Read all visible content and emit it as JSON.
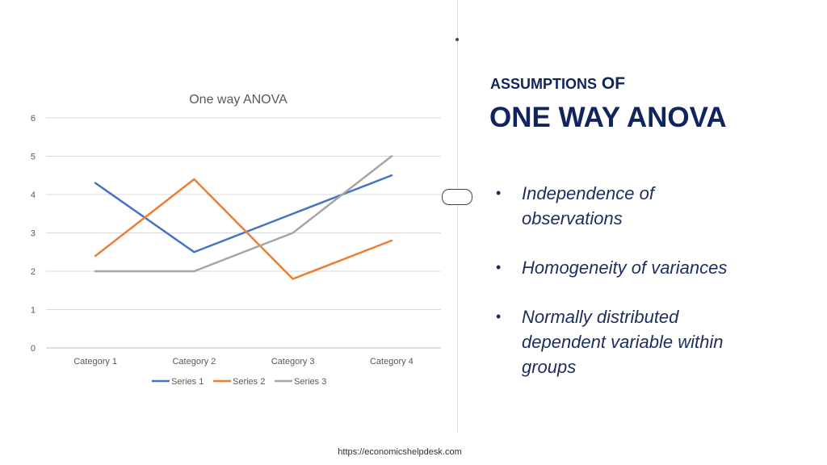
{
  "slide": {
    "title_line1_a": "ASSUMPTIONS",
    "title_line1_b": "OF",
    "title_line2": "ONE WAY ANOVA",
    "bullets": [
      "Independence of observations",
      "Homogeneity of variances",
      "Normally distributed dependent variable within groups"
    ],
    "footer": "https://economicshelpdesk.com"
  },
  "chart_data": {
    "type": "line",
    "title": "One way ANOVA",
    "xlabel": "",
    "ylabel": "",
    "categories": [
      "Category 1",
      "Category 2",
      "Category 3",
      "Category 4"
    ],
    "ylim": [
      0,
      6
    ],
    "yticks": [
      0,
      1,
      2,
      3,
      4,
      5,
      6
    ],
    "grid": true,
    "legend_position": "bottom",
    "series": [
      {
        "name": "Series 1",
        "values": [
          4.3,
          2.5,
          3.5,
          4.5
        ],
        "color": "#4472c4"
      },
      {
        "name": "Series 2",
        "values": [
          2.4,
          4.4,
          1.8,
          2.8
        ],
        "color": "#ed7d31"
      },
      {
        "name": "Series 3",
        "values": [
          2.0,
          2.0,
          3.0,
          5.0
        ],
        "color": "#a5a5a5"
      }
    ]
  }
}
